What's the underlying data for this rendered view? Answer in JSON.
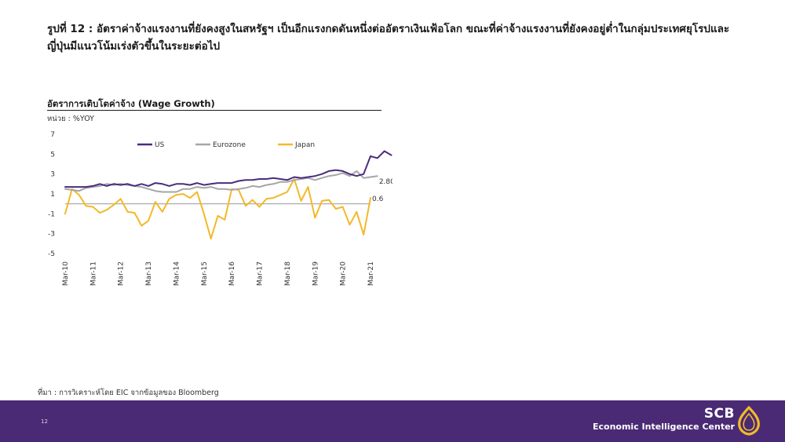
{
  "heading_lines": [
    "รูปที่ 12 : อัตราค่าจ้างแรงงานที่ยังคงสูงในสหรัฐฯ เป็นอีกแรงกดดันหนึ่งต่ออัตราเงินเฟ้อโลก ขณะที่ค่าจ้างแรงงานที่ยังคงอยู่ต่ำในกลุ่มประเทศยุโรปและ",
    "ญี่ปุ่นมีแนวโน้มเร่งตัวขึ้นในระยะต่อไป"
  ],
  "source": "ที่มา : การวิเคราะห์โดย EIC จากข้อมูลของ  Bloomberg",
  "page_number": "12",
  "brand": {
    "name": "SCB",
    "subtitle": "Economic Intelligence Center"
  },
  "colors": {
    "us": "#4b2c7a",
    "eurozone": "#a6a6a6",
    "japan": "#f2b928",
    "footer": "#4a2a74",
    "logo": "#f2b928"
  },
  "chart_data": {
    "type": "line",
    "title": "อัตราการเติบโตค่าจ้าง (Wage Growth)",
    "unit": "หน่วย : %YOY",
    "ylim": [
      -5,
      7
    ],
    "yticks": [
      "7",
      "5",
      "3",
      "1",
      "-1",
      "-3",
      "-5"
    ],
    "xticks": [
      "Mar-10",
      "Mar-11",
      "Mar-12",
      "Mar-13",
      "Mar-14",
      "Mar-15",
      "Mar-16",
      "Mar-17",
      "Mar-18",
      "Mar-19",
      "Mar-20",
      "Mar-21"
    ],
    "x_start": "Mar-10",
    "x_step": "quarter",
    "legend": "top",
    "grid": false,
    "series": [
      {
        "name": "US",
        "color": "#4b2c7a",
        "end_label": "4.9",
        "values": [
          1.7,
          1.7,
          1.7,
          1.7,
          1.8,
          2.0,
          1.8,
          2.0,
          1.9,
          2.0,
          1.8,
          2.0,
          1.8,
          2.1,
          2.0,
          1.8,
          2.0,
          2.0,
          1.9,
          2.1,
          1.9,
          2.0,
          2.1,
          2.1,
          2.1,
          2.3,
          2.4,
          2.4,
          2.5,
          2.5,
          2.6,
          2.5,
          2.4,
          2.7,
          2.6,
          2.7,
          2.8,
          3.0,
          3.3,
          3.4,
          3.3,
          3.0,
          2.8,
          3.0,
          4.8,
          4.6,
          5.3,
          4.9
        ]
      },
      {
        "name": "Eurozone",
        "color": "#a6a6a6",
        "end_label": "2.80",
        "values": [
          1.5,
          1.4,
          1.3,
          1.6,
          1.7,
          1.8,
          2.0,
          1.9,
          2.0,
          1.9,
          1.8,
          1.7,
          1.5,
          1.3,
          1.2,
          1.2,
          1.2,
          1.5,
          1.5,
          1.7,
          1.6,
          1.7,
          1.5,
          1.5,
          1.4,
          1.5,
          1.6,
          1.8,
          1.7,
          1.9,
          2.0,
          2.2,
          2.2,
          2.4,
          2.5,
          2.6,
          2.4,
          2.6,
          2.8,
          2.9,
          3.1,
          2.8,
          3.3,
          2.6,
          2.7,
          2.8
        ]
      },
      {
        "name": "Japan",
        "color": "#f2b928",
        "end_label": "0.6",
        "values": [
          -1.0,
          1.5,
          0.9,
          -0.2,
          -0.3,
          -0.9,
          -0.6,
          -0.1,
          0.5,
          -0.8,
          -0.9,
          -2.2,
          -1.7,
          0.2,
          -0.8,
          0.5,
          0.9,
          1.0,
          0.6,
          1.2,
          -1.0,
          -3.5,
          -1.2,
          -1.6,
          1.5,
          1.4,
          -0.2,
          0.4,
          -0.3,
          0.5,
          0.6,
          0.9,
          1.2,
          2.5,
          0.3,
          1.7,
          -1.4,
          0.3,
          0.4,
          -0.5,
          -0.3,
          -2.1,
          -0.8,
          -3.1,
          0.6
        ]
      }
    ]
  }
}
